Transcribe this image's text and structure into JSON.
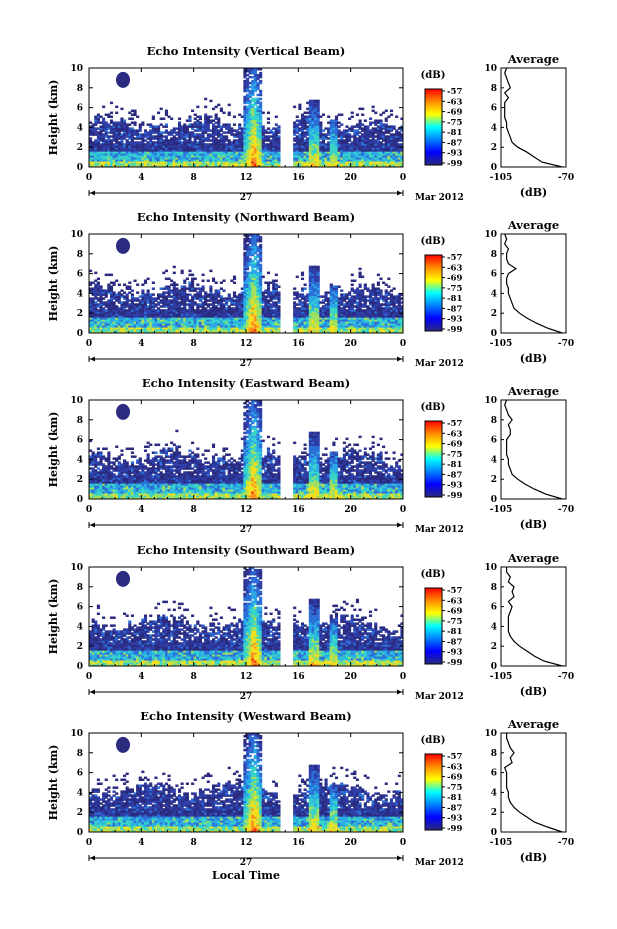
{
  "chart_data": {
    "type": "heatmap",
    "xlabel": "Local Time",
    "x_ticks": [
      "0",
      "4",
      "8",
      "12",
      "16",
      "20",
      "0"
    ],
    "x_range_hours": [
      0,
      24
    ],
    "day_label": "27",
    "month_label": "Mar 2012",
    "ylabel": "Height (km)",
    "y_ticks": [
      "0",
      "2",
      "4",
      "6",
      "8",
      "10"
    ],
    "ylim": [
      0,
      10
    ],
    "colorbar": {
      "unit": "(dB)",
      "ticks": [
        "-57",
        "-63",
        "-69",
        "-75",
        "-81",
        "-87",
        "-93",
        "-99"
      ],
      "colors": [
        "#ff0000",
        "#ff8c00",
        "#ffff00",
        "#00ffff",
        "#0080ff",
        "#0000ff",
        "#2b2b7f"
      ]
    },
    "average_plot": {
      "title": "Average",
      "xlabel": "(dB)",
      "x_ticks": [
        "-105",
        "-70"
      ],
      "y_ticks": [
        "0",
        "2",
        "4",
        "6",
        "8",
        "10"
      ]
    },
    "panels": [
      {
        "title": "Echo Intensity (Vertical Beam)",
        "avg_profile": {
          "height_km": [
            0,
            0.5,
            1,
            1.5,
            2,
            2.5,
            3,
            3.5,
            4,
            4.5,
            5,
            5.5,
            6,
            6.5,
            7,
            7.5,
            8,
            8.5,
            9,
            9.5,
            10
          ],
          "db": [
            -72,
            -83,
            -87,
            -91,
            -96,
            -99,
            -100,
            -101,
            -102,
            -102,
            -103,
            -103,
            -103,
            -103,
            -101,
            -103,
            -100,
            -101,
            -102,
            -103,
            -102
          ]
        }
      },
      {
        "title": "Echo Intensity (Northward Beam)",
        "avg_profile": {
          "height_km": [
            0,
            0.5,
            1,
            1.5,
            2,
            2.5,
            3,
            3.5,
            4,
            4.5,
            5,
            5.5,
            6,
            6.5,
            7,
            7.5,
            8,
            8.5,
            9,
            9.5,
            10
          ],
          "db": [
            -72,
            -80,
            -86,
            -91,
            -95,
            -98,
            -99,
            -100,
            -101,
            -101,
            -102,
            -102,
            -101,
            -97,
            -101,
            -102,
            -102,
            -101,
            -103,
            -102,
            -103
          ]
        }
      },
      {
        "title": "Echo Intensity (Eastward Beam)",
        "avg_profile": {
          "height_km": [
            0,
            0.5,
            1,
            1.5,
            2,
            2.5,
            3,
            3.5,
            4,
            4.5,
            5,
            5.5,
            6,
            6.5,
            7,
            7.5,
            8,
            8.5,
            9,
            9.5,
            10
          ],
          "db": [
            -72,
            -81,
            -87,
            -92,
            -96,
            -99,
            -100,
            -101,
            -101,
            -102,
            -102,
            -102,
            -102,
            -100,
            -100,
            -101,
            -99,
            -101,
            -102,
            -103,
            -102
          ]
        }
      },
      {
        "title": "Echo Intensity (Southward Beam)",
        "avg_profile": {
          "height_km": [
            0,
            0.5,
            1,
            1.5,
            2,
            2.5,
            3,
            3.5,
            4,
            4.5,
            5,
            5.5,
            6,
            6.5,
            7,
            7.5,
            8,
            8.5,
            9,
            9.5,
            10
          ],
          "db": [
            -72,
            -82,
            -87,
            -91,
            -95,
            -98,
            -100,
            -101,
            -101,
            -101,
            -101,
            -100,
            -99,
            -101,
            -98,
            -99,
            -98,
            -101,
            -100,
            -102,
            -102
          ]
        }
      },
      {
        "title": "Echo Intensity (Westward Beam)",
        "avg_profile": {
          "height_km": [
            0,
            0.5,
            1,
            1.5,
            2,
            2.5,
            3,
            3.5,
            4,
            4.5,
            5,
            5.5,
            6,
            6.5,
            7,
            7.5,
            8,
            8.5,
            9,
            9.5,
            10
          ],
          "db": [
            -72,
            -80,
            -87,
            -91,
            -95,
            -98,
            -100,
            -101,
            -101,
            -102,
            -102,
            -102,
            -102,
            -103,
            -99,
            -100,
            -98,
            -100,
            -101,
            -102,
            -102
          ]
        }
      }
    ]
  }
}
